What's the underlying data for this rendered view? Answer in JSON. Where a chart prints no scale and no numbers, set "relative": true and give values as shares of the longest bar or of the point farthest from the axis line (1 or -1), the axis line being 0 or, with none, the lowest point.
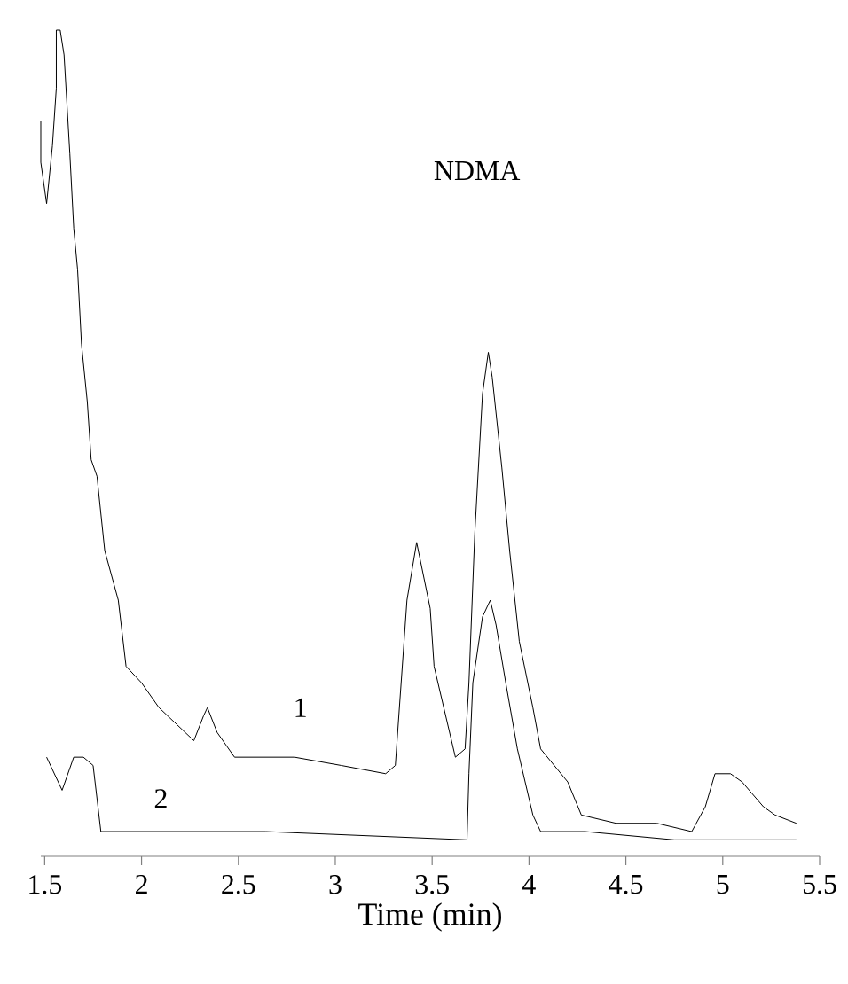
{
  "chart_data": {
    "type": "line",
    "xlabel": "Time (min)",
    "relative": true,
    "marker": "none",
    "xlim": [
      1.48,
      5.5
    ],
    "xticks": [
      1.5,
      2,
      2.5,
      3,
      3.5,
      4,
      4.5,
      5,
      5.5
    ],
    "annotations": [
      "NDMA"
    ],
    "series": [
      {
        "name": "1",
        "color": "#000000",
        "x": [
          1.48,
          1.48,
          1.51,
          1.54,
          1.56,
          1.56,
          1.58,
          1.6,
          1.63,
          1.65,
          1.67,
          1.69,
          1.72,
          1.74,
          1.77,
          1.81,
          1.88,
          1.92,
          2.0,
          2.09,
          2.18,
          2.27,
          2.32,
          2.34,
          2.39,
          2.48,
          2.79,
          3.03,
          3.26,
          3.31,
          3.37,
          3.42,
          3.49,
          3.51,
          3.56,
          3.62,
          3.67,
          3.69,
          3.72,
          3.76,
          3.79,
          3.81,
          3.86,
          3.9,
          3.95,
          4.02,
          4.06,
          4.2,
          4.27,
          4.45,
          4.66,
          4.84,
          4.91,
          4.96,
          5.04,
          5.1,
          5.21,
          5.27,
          5.38
        ],
        "values": [
          0.89,
          0.84,
          0.79,
          0.86,
          0.93,
          1.0,
          1.0,
          0.97,
          0.85,
          0.76,
          0.71,
          0.62,
          0.55,
          0.48,
          0.46,
          0.37,
          0.31,
          0.23,
          0.21,
          0.18,
          0.16,
          0.14,
          0.17,
          0.18,
          0.15,
          0.12,
          0.12,
          0.11,
          0.1,
          0.11,
          0.31,
          0.38,
          0.3,
          0.23,
          0.18,
          0.12,
          0.13,
          0.21,
          0.39,
          0.56,
          0.61,
          0.58,
          0.47,
          0.37,
          0.26,
          0.18,
          0.13,
          0.09,
          0.05,
          0.04,
          0.04,
          0.03,
          0.06,
          0.1,
          0.1,
          0.09,
          0.06,
          0.05,
          0.04
        ]
      },
      {
        "name": "2",
        "color": "#000000",
        "x": [
          1.51,
          1.59,
          1.65,
          1.7,
          1.75,
          1.79,
          1.83,
          2.64,
          3.68,
          3.69,
          3.71,
          3.76,
          3.8,
          3.83,
          3.88,
          3.94,
          4.02,
          4.06,
          4.29,
          4.75,
          5.38
        ],
        "values": [
          0.12,
          0.08,
          0.12,
          0.12,
          0.11,
          0.03,
          0.03,
          0.03,
          0.02,
          0.1,
          0.21,
          0.29,
          0.31,
          0.28,
          0.21,
          0.13,
          0.05,
          0.03,
          0.03,
          0.02,
          0.02
        ]
      }
    ]
  }
}
